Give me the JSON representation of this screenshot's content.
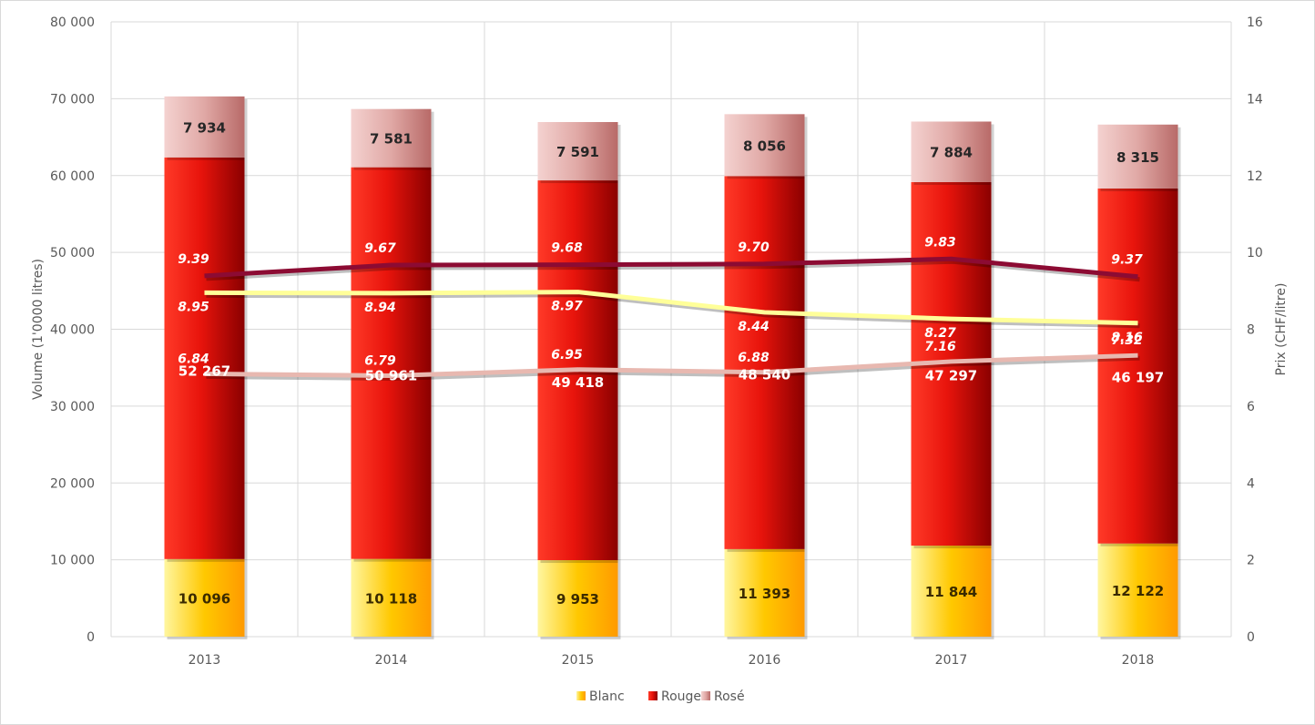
{
  "chart_data": {
    "type": "bar",
    "stacked": true,
    "categories": [
      "2013",
      "2014",
      "2015",
      "2016",
      "2017",
      "2018"
    ],
    "series": [
      {
        "name": "Blanc",
        "values": [
          10096,
          10118,
          9953,
          11393,
          11844,
          12122
        ],
        "labels": [
          "10 096",
          "10 118",
          "9 953",
          "11 393",
          "11 844",
          "12 122"
        ],
        "color": "#ffb000"
      },
      {
        "name": "Rouge",
        "values": [
          52267,
          50961,
          49418,
          48540,
          47297,
          46197
        ],
        "labels": [
          "52 267",
          "50 961",
          "49 418",
          "48 540",
          "47 297",
          "46 197"
        ],
        "color": "#e8140c"
      },
      {
        "name": "Rosé",
        "values": [
          7934,
          7581,
          7591,
          8056,
          7884,
          8315
        ],
        "labels": [
          "7 934",
          "7 581",
          "7 591",
          "8 056",
          "7 884",
          "8 315"
        ],
        "color": "#d99a98"
      }
    ],
    "price_lines": [
      {
        "values": [
          9.39,
          9.67,
          9.68,
          9.7,
          9.83,
          9.37
        ],
        "labels": [
          "9.39",
          "9.67",
          "9.68",
          "9.70",
          "9.83",
          "9.37"
        ],
        "color": "#8c0b33"
      },
      {
        "values": [
          8.95,
          8.94,
          8.97,
          8.44,
          8.27,
          8.16
        ],
        "labels": [
          "8.95",
          "8.94",
          "8.97",
          "8.44",
          "8.27",
          "8.16"
        ],
        "color": "#ffff99"
      },
      {
        "values": [
          6.84,
          6.79,
          6.95,
          6.88,
          7.16,
          7.32
        ],
        "labels": [
          "6.84",
          "6.79",
          "6.95",
          "6.88",
          "7.16",
          "7.32"
        ],
        "color": "#e8b8b0"
      }
    ],
    "ylabel": "Volume (1'0000 litres)",
    "ylabel_right": "Prix (CHF/litre)",
    "ylim": [
      0,
      80000
    ],
    "ylim_right": [
      0,
      16
    ],
    "yticks": [
      "0",
      "10 000",
      "20 000",
      "30 000",
      "40 000",
      "50 000",
      "60 000",
      "70 000",
      "80 000"
    ],
    "yticks_right": [
      "0",
      "2",
      "4",
      "6",
      "8",
      "10",
      "12",
      "14",
      "16"
    ],
    "grid": true,
    "legend": {
      "position": "bottom",
      "items": [
        "Blanc",
        "Rouge",
        "Rosé"
      ]
    }
  }
}
